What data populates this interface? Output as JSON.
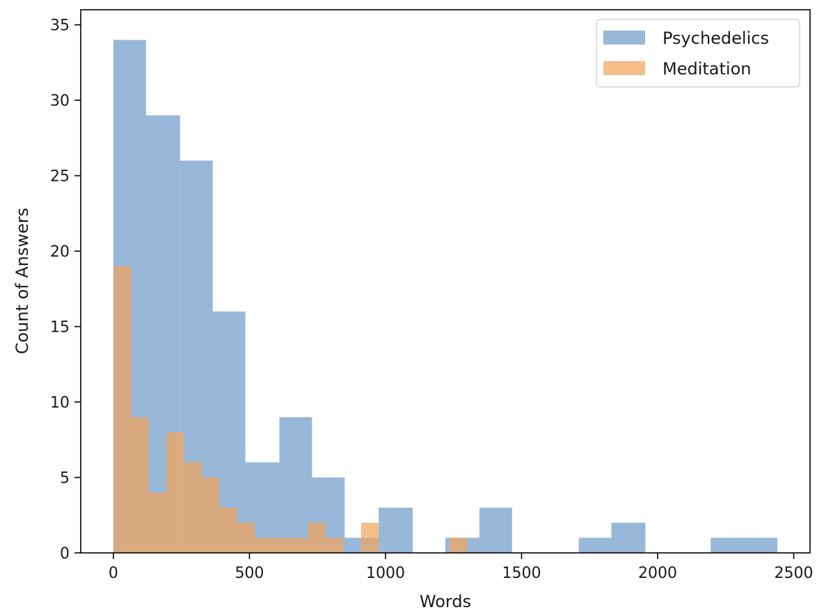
{
  "chart_data": {
    "type": "bar",
    "title": "",
    "xlabel": "Words",
    "ylabel": "Count of Answers",
    "xlim": [
      -120,
      2560
    ],
    "ylim": [
      0,
      36
    ],
    "x_ticks": [
      0,
      500,
      1000,
      1500,
      2000,
      2500
    ],
    "y_ticks": [
      0,
      5,
      10,
      15,
      20,
      25,
      30,
      35
    ],
    "grid": false,
    "legend_position": "top-right",
    "series": [
      {
        "name": "Psychedelics",
        "color": "#6f9cc9",
        "opacity": 0.72,
        "bin_edges": [
          0,
          120,
          245,
          365,
          485,
          610,
          730,
          850,
          975,
          1100,
          1220,
          1345,
          1465,
          1590,
          1710,
          1830,
          1955,
          2075,
          2195,
          2320,
          2440
        ],
        "values": [
          34,
          29,
          26,
          16,
          6,
          9,
          5,
          1,
          3,
          0,
          1,
          3,
          0,
          0,
          1,
          2,
          0,
          0,
          1,
          1
        ]
      },
      {
        "name": "Meditation",
        "color": "#f2a55e",
        "opacity": 0.72,
        "bin_edges": [
          0,
          65,
          130,
          195,
          260,
          325,
          390,
          455,
          520,
          585,
          650,
          715,
          780,
          845,
          910,
          975,
          1040,
          1105,
          1170,
          1235,
          1300
        ],
        "values": [
          19,
          9,
          4,
          8,
          6,
          5,
          3,
          2,
          1,
          1,
          1,
          2,
          1,
          0,
          2,
          0,
          0,
          0,
          0,
          1
        ]
      }
    ]
  }
}
